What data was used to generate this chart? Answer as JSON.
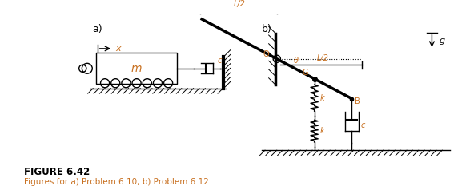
{
  "title_bold": "FIGURE 6.42",
  "title_normal": "Figures for a) Problem 6.10, b) Problem 6.12.",
  "label_a": "a)",
  "label_b": "b)",
  "text_color": "#c87020",
  "title_bold_color": "#000000",
  "fig_width": 5.92,
  "fig_height": 2.43,
  "bg_color": "#ffffff"
}
